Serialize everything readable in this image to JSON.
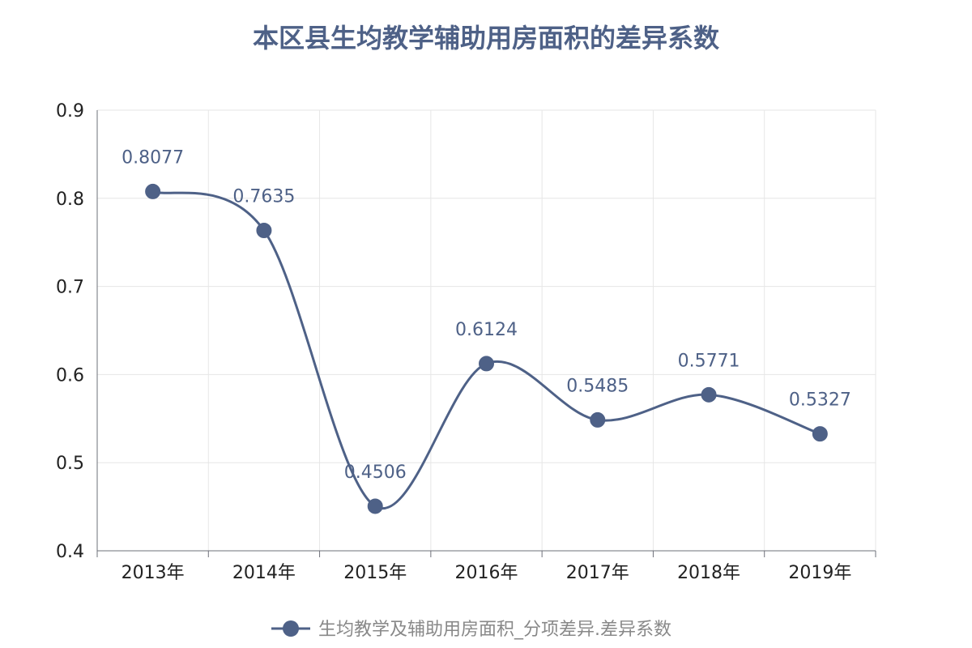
{
  "chart_data": {
    "type": "line",
    "title": "本区县生均教学辅助用房面积的差异系数",
    "categories": [
      "2013年",
      "2014年",
      "2015年",
      "2016年",
      "2017年",
      "2018年",
      "2019年"
    ],
    "series": [
      {
        "name": "生均教学及辅助用房面积_分项差异.差异系数",
        "values": [
          0.8077,
          0.7635,
          0.4506,
          0.6124,
          0.5485,
          0.5771,
          0.5327
        ],
        "labels": [
          "0.8077",
          "0.7635",
          "0.4506",
          "0.6124",
          "0.5485",
          "0.5771",
          "0.5327"
        ]
      }
    ],
    "ylim": [
      0.4,
      0.9
    ],
    "yticks": [
      "0.4",
      "0.5",
      "0.6",
      "0.7",
      "0.8",
      "0.9"
    ],
    "grid": true,
    "smooth": true,
    "legend_position": "bottom-center",
    "color": "#4e6187"
  }
}
